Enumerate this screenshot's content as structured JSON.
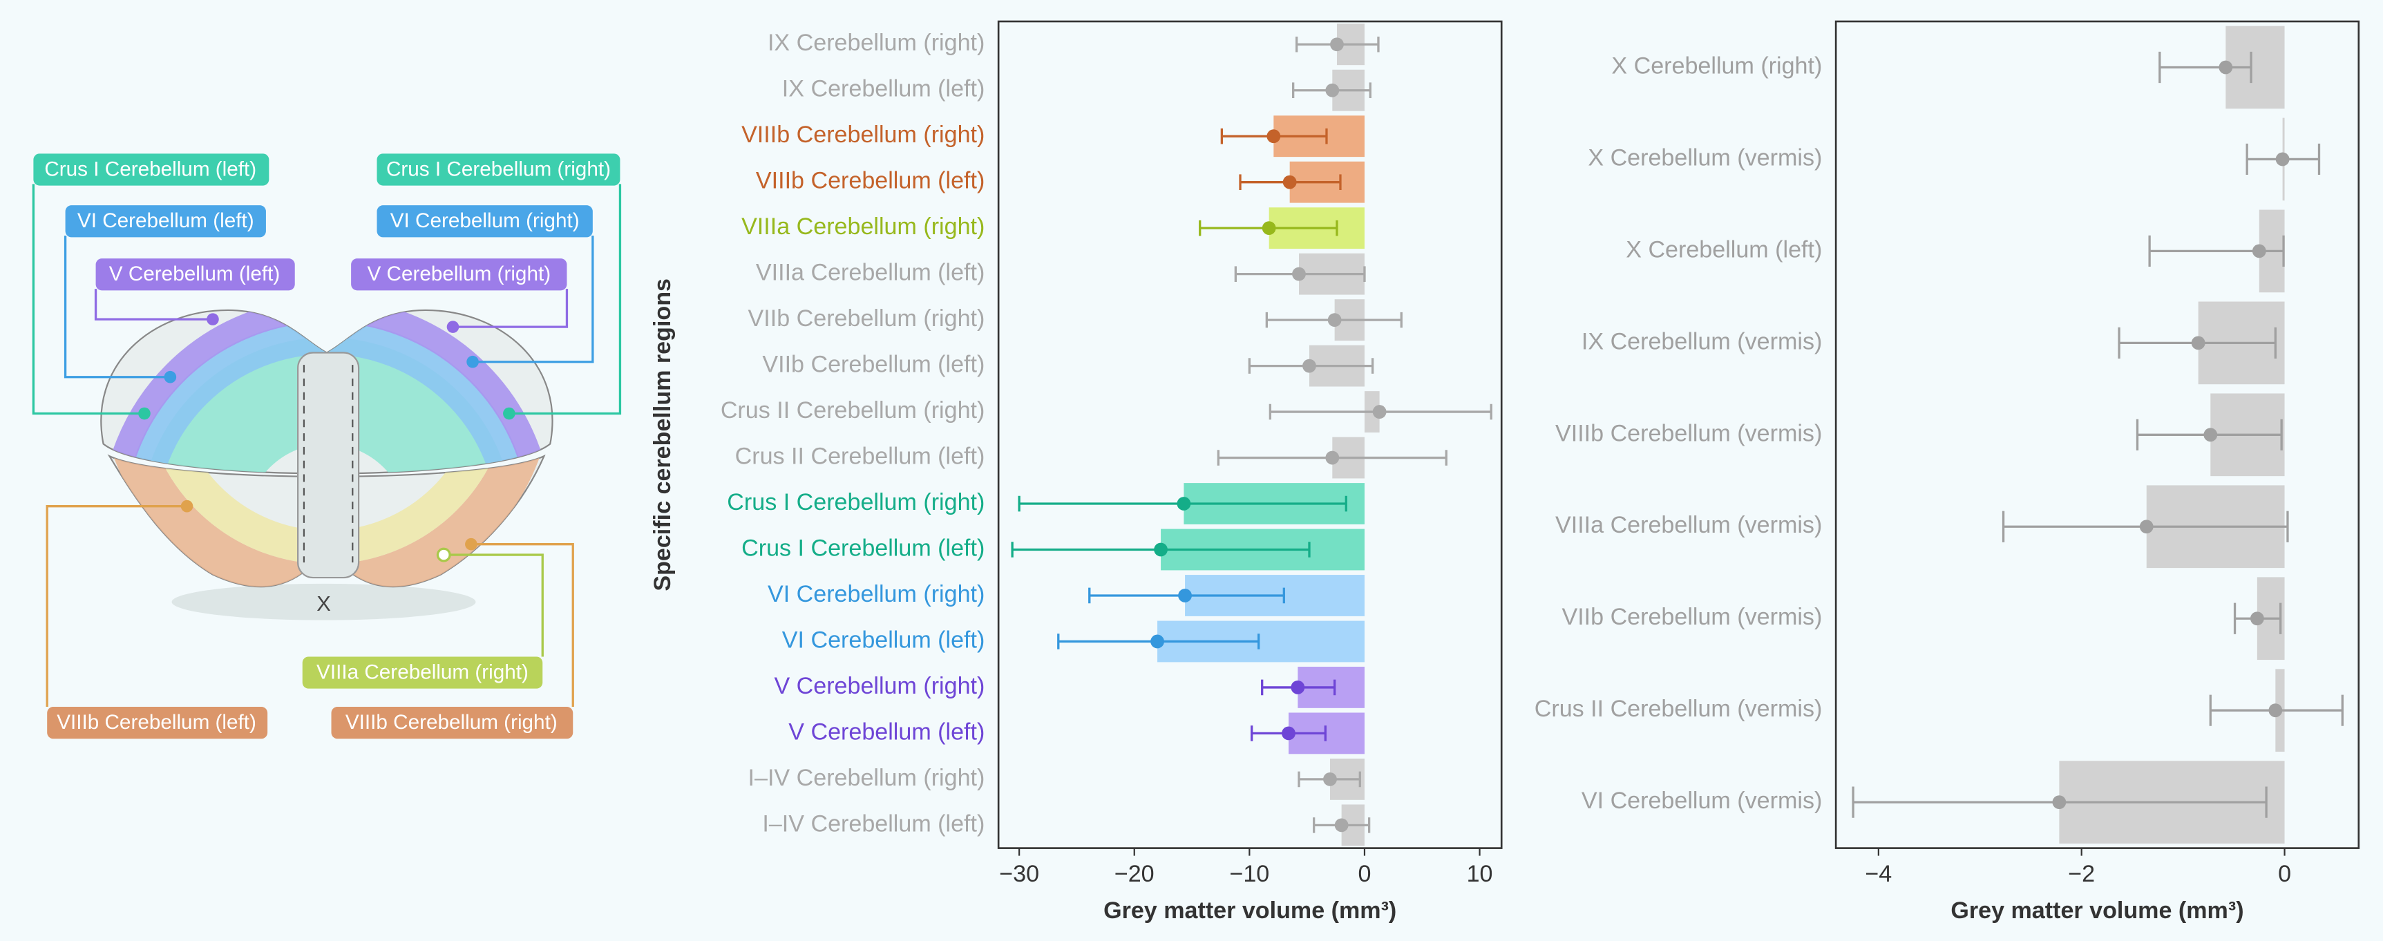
{
  "illustration": {
    "labels": [
      "Crus I Cerebellum (left)",
      "Crus I Cerebellum (right)",
      "VI Cerebellum (left)",
      "VI Cerebellum (right)",
      "V Cerebellum (left)",
      "V Cerebellum (right)",
      "VIIIa Cerebellum (right)",
      "VIIIb Cerebellum (left)",
      "VIIIb Cerebellum (right)"
    ],
    "region_mark": "X"
  },
  "chart_data": [
    {
      "type": "bar",
      "orientation": "horizontal",
      "xlabel": "Grey matter volume (mm³)",
      "ylabel": "Specific cerebellum regions",
      "categories": [
        "IX Cerebellum (right)",
        "IX Cerebellum (left)",
        "VIIIb Cerebellum (right)",
        "VIIIb Cerebellum (left)",
        "VIIIa Cerebellum (right)",
        "VIIIa Cerebellum (left)",
        "VIIb Cerebellum (right)",
        "VIIb Cerebellum (left)",
        "Crus II Cerebellum (right)",
        "Crus II Cerebellum (left)",
        "Crus I Cerebellum (right)",
        "Crus I Cerebellum (left)",
        "VI Cerebellum (right)",
        "VI Cerebellum (left)",
        "V Cerebellum (right)",
        "V Cerebellum (left)",
        "I–IV Cerebellum (right)",
        "I–IV Cerebellum (left)"
      ],
      "values": [
        -2.4,
        -2.8,
        -7.9,
        -6.5,
        -8.3,
        -5.7,
        -2.6,
        -4.8,
        1.3,
        -2.8,
        -15.7,
        -17.7,
        -15.6,
        -18.0,
        -5.8,
        -6.6,
        -3.0,
        -2.0
      ],
      "ci": [
        [
          -5.9,
          1.2
        ],
        [
          -6.2,
          0.5
        ],
        [
          -12.4,
          -3.3
        ],
        [
          -10.8,
          -2.1
        ],
        [
          -14.3,
          -2.4
        ],
        [
          -11.2,
          0.0
        ],
        [
          -8.5,
          3.2
        ],
        [
          -10.0,
          0.7
        ],
        [
          -8.2,
          11.0
        ],
        [
          -12.7,
          7.1
        ],
        [
          -30.0,
          -1.6
        ],
        [
          -30.6,
          -4.8
        ],
        [
          -23.9,
          -7.0
        ],
        [
          -26.6,
          -9.2
        ],
        [
          -8.9,
          -2.6
        ],
        [
          -9.8,
          -3.4
        ],
        [
          -5.7,
          -0.4
        ],
        [
          -4.4,
          0.4
        ]
      ],
      "colors": [
        "#d2d2d2",
        "#d2d2d2",
        "#eeac82",
        "#eeac82",
        "#d9ef7c",
        "#d2d2d2",
        "#d2d2d2",
        "#d2d2d2",
        "#d2d2d2",
        "#d2d2d2",
        "#74e0c4",
        "#74e0c4",
        "#a6d6fb",
        "#a6d6fb",
        "#b9a0f3",
        "#b9a0f3",
        "#d2d2d2",
        "#d2d2d2"
      ],
      "marker_colors": [
        "#a8a8a8",
        "#a8a8a8",
        "#c4622a",
        "#c4622a",
        "#97b81c",
        "#a8a8a8",
        "#a8a8a8",
        "#a8a8a8",
        "#a8a8a8",
        "#a8a8a8",
        "#14ad88",
        "#14ad88",
        "#3497dd",
        "#3497dd",
        "#6e45d6",
        "#6e45d6",
        "#a8a8a8",
        "#a8a8a8"
      ],
      "xlim": [
        -31.8,
        11.9
      ],
      "xticks": [
        {
          "value": -30,
          "label": "−30"
        },
        {
          "value": -20,
          "label": "−20"
        },
        {
          "value": -10,
          "label": "−10"
        },
        0,
        10
      ]
    },
    {
      "type": "bar",
      "orientation": "horizontal",
      "xlabel": "Grey matter volume (mm³)",
      "categories": [
        "X Cerebellum (right)",
        "X Cerebellum (vermis)",
        "X Cerebellum (left)",
        "IX Cerebellum (vermis)",
        "VIIIb Cerebellum (vermis)",
        "VIIIa Cerebellum (vermis)",
        "VIIb Cerebellum (vermis)",
        "Crus II Cerebellum (vermis)",
        "VI Cerebellum (vermis)"
      ],
      "values": [
        -0.58,
        -0.02,
        -0.25,
        -0.85,
        -0.73,
        -1.36,
        -0.27,
        -0.09,
        -2.22
      ],
      "ci": [
        [
          -1.23,
          -0.33
        ],
        [
          -0.37,
          0.34
        ],
        [
          -1.33,
          -0.01
        ],
        [
          -1.63,
          -0.09
        ],
        [
          -1.45,
          -0.03
        ],
        [
          -2.77,
          0.03
        ],
        [
          -0.49,
          -0.04
        ],
        [
          -0.73,
          0.57
        ],
        [
          -4.25,
          -0.18
        ]
      ],
      "color": "#d2d2d2",
      "marker_color": "#a0a0a0",
      "xlim": [
        -4.42,
        0.73
      ],
      "xticks": [
        {
          "value": -4,
          "label": "−4"
        },
        {
          "value": -2,
          "label": "−2"
        },
        0
      ]
    }
  ]
}
